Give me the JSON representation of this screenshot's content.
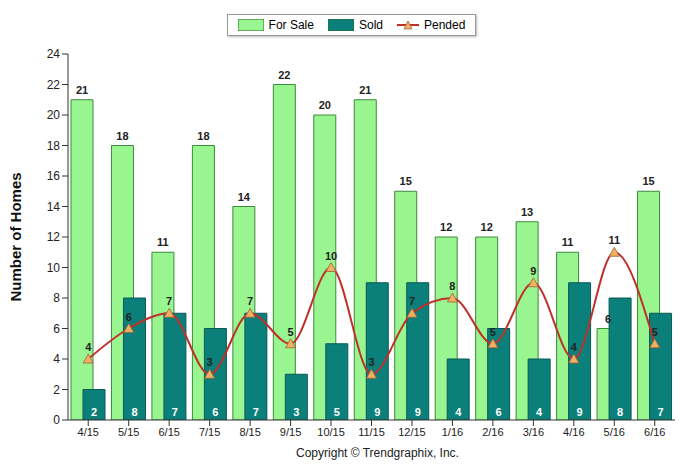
{
  "chart_data": {
    "type": "bar",
    "y_label": "Number of Homes",
    "annotations": [
      "Copyright © Trendgraphix, Inc."
    ],
    "categories": [
      "4/15",
      "5/15",
      "6/15",
      "7/15",
      "8/15",
      "9/15",
      "10/15",
      "11/15",
      "12/15",
      "1/16",
      "2/16",
      "3/16",
      "4/16",
      "5/16",
      "6/16"
    ],
    "series": [
      {
        "name": "For Sale",
        "type": "bar",
        "color": "#99f58f",
        "values": [
          21,
          18,
          11,
          18,
          14,
          22,
          20,
          21,
          15,
          12,
          12,
          13,
          11,
          6,
          15
        ]
      },
      {
        "name": "Sold",
        "type": "bar",
        "color": "#0b7f7a",
        "values": [
          2,
          8,
          7,
          6,
          7,
          3,
          5,
          9,
          9,
          4,
          6,
          4,
          9,
          8,
          7
        ]
      },
      {
        "name": "Pended",
        "type": "line",
        "color": "#c0302a",
        "marker": "triangle",
        "line_style": "smooth",
        "values": [
          4,
          6,
          7,
          3,
          7,
          5,
          10,
          3,
          7,
          8,
          5,
          9,
          4,
          11,
          5
        ]
      }
    ],
    "ylim": [
      0,
      24
    ],
    "yticks": [
      0,
      2,
      4,
      6,
      8,
      10,
      12,
      14,
      16,
      18,
      20,
      22,
      24
    ],
    "grid": false,
    "legend": "top",
    "data_labels": true
  }
}
